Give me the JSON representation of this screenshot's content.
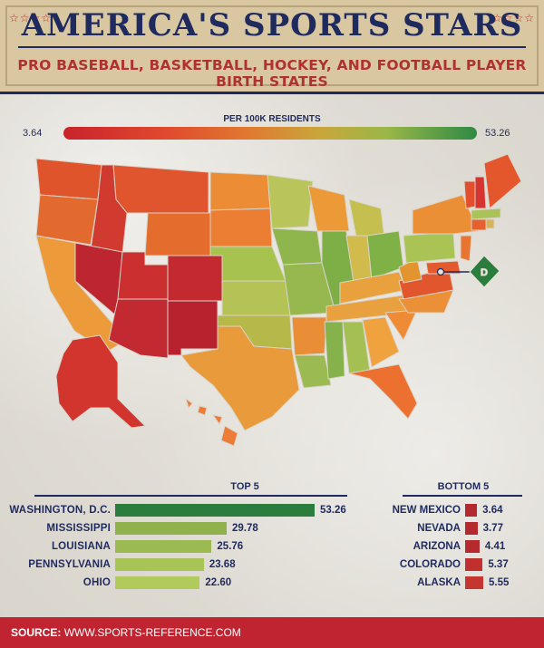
{
  "header": {
    "title": "AMERICA'S SPORTS STARS",
    "subtitle": "PRO BASEBALL, BASKETBALL, HOCKEY, AND FOOTBALL PLAYER BIRTH STATES",
    "stars": "☆☆☆☆"
  },
  "legend": {
    "title": "PER 100K RESIDENTS",
    "min": "3.64",
    "max": "53.26",
    "colors": [
      "#c8232c",
      "#e07a30",
      "#9bb748",
      "#2e8a45"
    ]
  },
  "map": {
    "dc_label": "D"
  },
  "chart_data": [
    {
      "type": "bar",
      "title": "TOP 5",
      "categories": [
        "WASHINGTON, D.C.",
        "MISSISSIPPI",
        "LOUISIANA",
        "PENNSYLVANIA",
        "OHIO"
      ],
      "values": [
        53.26,
        29.78,
        25.76,
        23.68,
        22.6
      ],
      "value_labels": [
        "53.26",
        "29.78",
        "25.76",
        "23.68",
        "22.60"
      ],
      "colors": [
        "#2b7d3e",
        "#8fb24c",
        "#9bbb52",
        "#a8c456",
        "#b1ca5c"
      ]
    },
    {
      "type": "bar",
      "title": "BOTTOM 5",
      "categories": [
        "NEW MEXICO",
        "NEVADA",
        "ARIZONA",
        "COLORADO",
        "ALASKA"
      ],
      "values": [
        3.64,
        3.77,
        4.41,
        5.37,
        5.55
      ],
      "value_labels": [
        "3.64",
        "3.77",
        "4.41",
        "5.37",
        "5.55"
      ],
      "colors": [
        "#b42a2e",
        "#b42a2e",
        "#b42a2e",
        "#c0302e",
        "#c4362f"
      ]
    }
  ],
  "footer": {
    "source_label": "SOURCE:",
    "source_url": "WWW.SPORTS-REFERENCE.COM"
  }
}
